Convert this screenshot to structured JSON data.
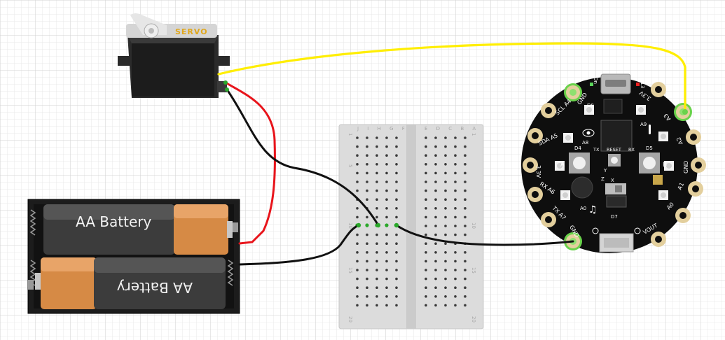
{
  "servo": {
    "label": "SERVO"
  },
  "battery": {
    "top_label": "AA Battery",
    "bottom_label": "AA Battery"
  },
  "breadboard": {
    "row_numbers": [
      "1",
      "5",
      "10",
      "15",
      "20"
    ],
    "left_cols": "J I H G F",
    "right_cols": "E D C B A"
  },
  "board": {
    "usb_label": "On",
    "pads": {
      "gnd_top": "GND",
      "scl_a4": "SCL A4",
      "sda_a5": "SDA A5",
      "v3_left": "3.3V",
      "rx_a6": "RX A6",
      "tx_a7": "TX A7",
      "gnd_bottom": "GND",
      "vout": "VOUT",
      "a0": "A0",
      "a1": "A1",
      "gnd_right": "GND",
      "a2": "A2",
      "a3": "A3",
      "v3_right": "3.3V"
    },
    "labels": {
      "d13": "D13",
      "d8": "D8",
      "a8": "A8",
      "a9": "A9",
      "d4": "D4",
      "d5": "D5",
      "tx": "TX",
      "rx": "RX",
      "reset": "RESET",
      "btn_a": "A",
      "btn_b": "B",
      "a0_small": "A0",
      "d7": "D7",
      "y": "Y",
      "x": "X",
      "z": "Z"
    }
  },
  "colors": {
    "signal_wire": "#ffee00",
    "power_wire": "#e8141b",
    "ground_wire": "#111111",
    "board": "#0e0e0e",
    "pad_ring": "#e3cf9d",
    "highlight": "#69d24b"
  }
}
